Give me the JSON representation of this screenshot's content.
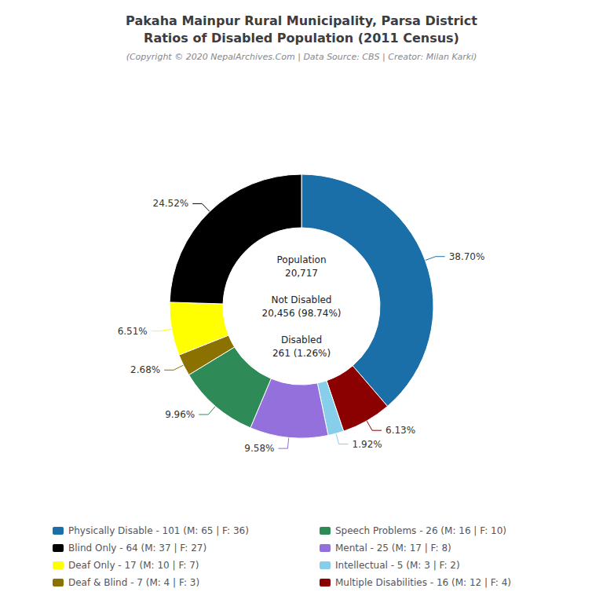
{
  "chart_data": {
    "type": "pie",
    "title": "Pakaha Mainpur Rural Municipality, Parsa District\nRatios of Disabled Population (2011 Census)",
    "subtitle": "(Copyright © 2020 NepalArchives.Com | Data Source: CBS | Creator: Milan Karki)",
    "categories": [
      "Physically Disable - 101 (M: 65 | F: 36)",
      "Multiple Disabilities - 16 (M: 12 | F: 4)",
      "Intellectual - 5 (M: 3 | F: 2)",
      "Mental - 25 (M: 17 | F: 8)",
      "Speech Problems - 26 (M: 16 | F: 10)",
      "Deaf & Blind - 7 (M: 4 | F: 3)",
      "Deaf Only - 17 (M: 10 | F: 7)",
      "Blind Only - 64 (M: 37 | F: 27)"
    ],
    "values": [
      38.7,
      6.13,
      1.92,
      9.58,
      9.96,
      2.68,
      6.51,
      24.52
    ],
    "value_labels": [
      "38.70%",
      "6.13%",
      "1.92%",
      "9.58%",
      "9.96%",
      "2.68%",
      "6.51%",
      "24.52%"
    ],
    "data_labels": true,
    "colors": [
      "#1b6fa8",
      "#8b0000",
      "#87ceeb",
      "#9370db",
      "#2e8b57",
      "#8b7200",
      "#ffff00",
      "#000000"
    ],
    "legend": "bottom",
    "legend_order": [
      "Physically Disable - 101 (M: 65 | F: 36)",
      "Blind Only - 64 (M: 37 | F: 27)",
      "Deaf Only - 17 (M: 10 | F: 7)",
      "Deaf & Blind - 7 (M: 4 | F: 3)",
      "Speech Problems - 26 (M: 16 | F: 10)",
      "Mental - 25 (M: 17 | F: 8)",
      "Intellectual - 5 (M: 3 | F: 2)",
      "Multiple Disabilities - 16 (M: 12 | F: 4)"
    ],
    "annotations": [
      "Population\n20,717\n\nNot Disabled\n20,456 (98.74%)\n\nDisabled\n261 (1.26%)"
    ]
  }
}
